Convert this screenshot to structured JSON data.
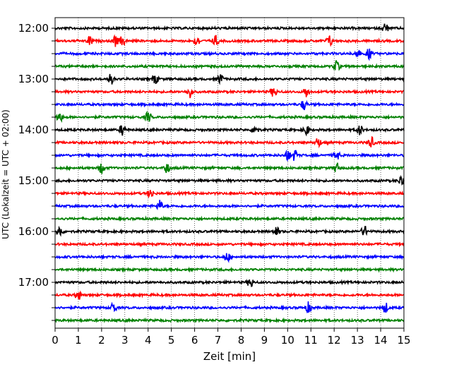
{
  "chart_data": {
    "type": "line",
    "xlabel": "Zeit  [min]",
    "ylabel": "UTC (Lokalzeit = UTC + 02:00)",
    "xlim": [
      0,
      15
    ],
    "x_ticks": [
      0,
      1,
      2,
      3,
      4,
      5,
      6,
      7,
      8,
      9,
      10,
      11,
      12,
      13,
      14,
      15
    ],
    "x_tick_labels": [
      "0",
      "1",
      "2",
      "3",
      "4",
      "5",
      "6",
      "7",
      "8",
      "9",
      "10",
      "11",
      "12",
      "13",
      "14",
      "15"
    ],
    "y_tick_labels": [
      "12:00",
      "13:00",
      "14:00",
      "15:00",
      "16:00",
      "17:00"
    ],
    "grid": "vertical dotted",
    "trace_minutes": 15,
    "trace_colors": [
      "#000000",
      "#ff0000",
      "#0000ff",
      "#008000"
    ],
    "traces": [
      {
        "start": "12:00",
        "events": [
          14.2
        ]
      },
      {
        "start": "12:15",
        "events": [
          1.5,
          2.6,
          2.9,
          6.1,
          6.9,
          11.8
        ]
      },
      {
        "start": "12:30",
        "events": [
          13.0,
          13.5
        ]
      },
      {
        "start": "12:45",
        "events": [
          12.1
        ]
      },
      {
        "start": "13:00",
        "events": [
          2.4,
          4.3,
          7.1
        ]
      },
      {
        "start": "13:15",
        "events": [
          5.8,
          9.4,
          10.8
        ]
      },
      {
        "start": "13:30",
        "events": [
          10.7
        ]
      },
      {
        "start": "13:45",
        "events": [
          0.2,
          4.0
        ]
      },
      {
        "start": "14:00",
        "events": [
          2.9,
          8.6,
          10.8,
          13.1
        ]
      },
      {
        "start": "14:15",
        "events": [
          11.3,
          13.6
        ]
      },
      {
        "start": "14:30",
        "events": [
          10.0,
          10.3,
          12.1
        ]
      },
      {
        "start": "14:45",
        "events": [
          2.0,
          4.8,
          12.1
        ]
      },
      {
        "start": "15:00",
        "events": [
          14.9
        ]
      },
      {
        "start": "15:15",
        "events": [
          4.1
        ]
      },
      {
        "start": "15:30",
        "events": [
          4.5
        ]
      },
      {
        "start": "15:45",
        "events": []
      },
      {
        "start": "16:00",
        "events": [
          0.2,
          9.5,
          13.3
        ]
      },
      {
        "start": "16:15",
        "events": []
      },
      {
        "start": "16:30",
        "events": [
          7.4
        ]
      },
      {
        "start": "16:45",
        "events": []
      },
      {
        "start": "17:00",
        "events": [
          8.4
        ]
      },
      {
        "start": "17:15",
        "events": [
          1.0
        ]
      },
      {
        "start": "17:30",
        "events": [
          2.5,
          10.9,
          14.2
        ]
      },
      {
        "start": "17:45",
        "events": []
      }
    ]
  }
}
